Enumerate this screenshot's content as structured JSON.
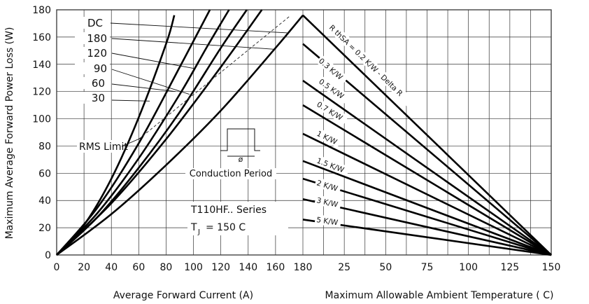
{
  "chart_data": [
    {
      "type": "line",
      "xlabel": "Average Forward Current (A)",
      "ylabel": "Maximum Average Forward Power Loss (W)",
      "xlim": [
        0,
        180
      ],
      "ylim": [
        0,
        180
      ],
      "xticks": [
        "0",
        "20",
        "40",
        "60",
        "80",
        "100",
        "120",
        "140",
        "160",
        "180"
      ],
      "yticks": [
        "0",
        "20",
        "40",
        "60",
        "80",
        "100",
        "120",
        "140",
        "160",
        "180"
      ],
      "grid": true,
      "series": [
        {
          "name": "DC",
          "x": [
            0,
            40,
            80,
            120,
            160,
            180
          ],
          "y": [
            0,
            30,
            66,
            106,
            152,
            176
          ]
        },
        {
          "name": "180",
          "x": [
            0,
            40,
            80,
            120,
            150
          ],
          "y": [
            0,
            38,
            85,
            138,
            180
          ]
        },
        {
          "name": "120",
          "x": [
            0,
            30,
            60,
            90,
            120,
            139
          ],
          "y": [
            0,
            28,
            64,
            105,
            152,
            180
          ]
        },
        {
          "name": "90",
          "x": [
            0,
            30,
            60,
            90,
            110,
            126
          ],
          "y": [
            0,
            31,
            71,
            118,
            153,
            180
          ]
        },
        {
          "name": "60",
          "x": [
            0,
            30,
            60,
            90,
            112
          ],
          "y": [
            0,
            35,
            82,
            138,
            180
          ]
        },
        {
          "name": "30",
          "x": [
            0,
            20,
            40,
            60,
            80,
            86
          ],
          "y": [
            0,
            22,
            56,
            101,
            155,
            176
          ]
        }
      ],
      "rms_limit": {
        "label": "RMS Limit",
        "x": [
          60,
          170
        ],
        "y": [
          85,
          175
        ]
      },
      "annotations": {
        "conduction": "Conduction Period",
        "phi": "ø",
        "series_title": "T110HF.. Series",
        "tj_main": "T",
        "tj_sub": "J",
        "tj_value": "= 150  C"
      }
    },
    {
      "type": "line",
      "xlabel": "Maximum Allowable Ambient Temperature ( C)",
      "xlim": [
        0,
        150
      ],
      "ylim": [
        0,
        180
      ],
      "xticks": [
        "25",
        "50",
        "75",
        "100",
        "125",
        "150"
      ],
      "grid": true,
      "series": [
        {
          "name": "R thSA = 0.2 K/W - Delta R",
          "x": [
            0,
            150
          ],
          "y": [
            176,
            0
          ]
        },
        {
          "name": "0.3 K/W",
          "x": [
            0,
            150
          ],
          "y": [
            155,
            0
          ]
        },
        {
          "name": "0.5 K/W",
          "x": [
            0,
            150
          ],
          "y": [
            128,
            0
          ]
        },
        {
          "name": "0.7 K/W",
          "x": [
            0,
            150
          ],
          "y": [
            110,
            0
          ]
        },
        {
          "name": "1 K/W",
          "x": [
            0,
            150
          ],
          "y": [
            89,
            0
          ]
        },
        {
          "name": "1.5 K/W",
          "x": [
            0,
            150
          ],
          "y": [
            69,
            0
          ]
        },
        {
          "name": "2 K/W",
          "x": [
            0,
            150
          ],
          "y": [
            56,
            0
          ]
        },
        {
          "name": "3 K/W",
          "x": [
            0,
            150
          ],
          "y": [
            41,
            0
          ]
        },
        {
          "name": "5 K/W",
          "x": [
            0,
            150
          ],
          "y": [
            26,
            0
          ]
        }
      ]
    }
  ]
}
